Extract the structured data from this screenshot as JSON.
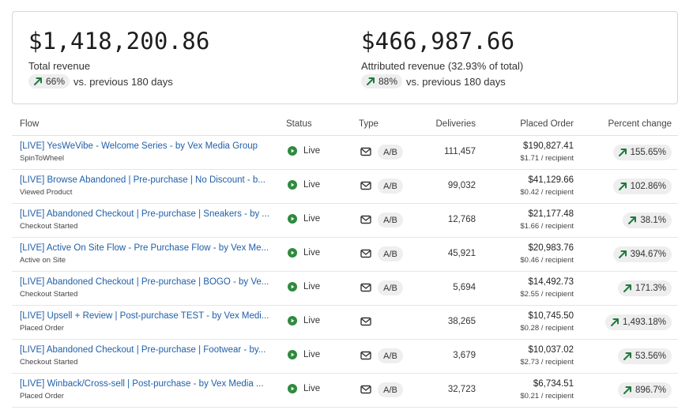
{
  "summary": {
    "total": {
      "value": "$1,418,200.86",
      "label": "Total revenue",
      "change": "66%",
      "comparison": "vs. previous 180 days"
    },
    "attributed": {
      "value": "$466,987.66",
      "label": "Attributed revenue (32.93% of total)",
      "change": "88%",
      "comparison": "vs. previous 180 days"
    }
  },
  "table": {
    "headers": {
      "flow": "Flow",
      "status": "Status",
      "type": "Type",
      "deliveries": "Deliveries",
      "placed_order": "Placed Order",
      "percent_change": "Percent change"
    },
    "rows": [
      {
        "name": "[LIVE] YesWeVibe - Welcome Series - by Vex Media Group",
        "trigger": "SpinToWheel",
        "status": "Live",
        "ab": "A/B",
        "deliveries": "111,457",
        "placed_order": "$190,827.41",
        "per_recipient": "$1.71 / recipient",
        "percent_change": "155.65%"
      },
      {
        "name": "[LIVE] Browse Abandoned | Pre-purchase | No Discount - b...",
        "trigger": "Viewed Product",
        "status": "Live",
        "ab": "A/B",
        "deliveries": "99,032",
        "placed_order": "$41,129.66",
        "per_recipient": "$0.42 / recipient",
        "percent_change": "102.86%"
      },
      {
        "name": "[LIVE] Abandoned Checkout | Pre-purchase | Sneakers - by ...",
        "trigger": "Checkout Started",
        "status": "Live",
        "ab": "A/B",
        "deliveries": "12,768",
        "placed_order": "$21,177.48",
        "per_recipient": "$1.66 / recipient",
        "percent_change": "38.1%"
      },
      {
        "name": "[LIVE] Active On Site Flow - Pre Purchase Flow - by Vex Me...",
        "trigger": "Active on Site",
        "status": "Live",
        "ab": "A/B",
        "deliveries": "45,921",
        "placed_order": "$20,983.76",
        "per_recipient": "$0.46 / recipient",
        "percent_change": "394.67%"
      },
      {
        "name": "[LIVE] Abandoned Checkout | Pre-purchase | BOGO - by Ve...",
        "trigger": "Checkout Started",
        "status": "Live",
        "ab": "A/B",
        "deliveries": "5,694",
        "placed_order": "$14,492.73",
        "per_recipient": "$2.55 / recipient",
        "percent_change": "171.3%"
      },
      {
        "name": "[LIVE] Upsell + Review | Post-purchase TEST - by Vex Medi...",
        "trigger": "Placed Order",
        "status": "Live",
        "ab": "",
        "deliveries": "38,265",
        "placed_order": "$10,745.50",
        "per_recipient": "$0.28 / recipient",
        "percent_change": "1,493.18%"
      },
      {
        "name": "[LIVE] Abandoned Checkout | Pre-purchase | Footwear - by...",
        "trigger": "Checkout Started",
        "status": "Live",
        "ab": "A/B",
        "deliveries": "3,679",
        "placed_order": "$10,037.02",
        "per_recipient": "$2.73 / recipient",
        "percent_change": "53.56%"
      },
      {
        "name": "[LIVE] Winback/Cross-sell | Post-purchase - by Vex Media ...",
        "trigger": "Placed Order",
        "status": "Live",
        "ab": "A/B",
        "deliveries": "32,723",
        "placed_order": "$6,734.51",
        "per_recipient": "$0.21 / recipient",
        "percent_change": "896.7%"
      }
    ]
  },
  "icons": {
    "trend": "trend-up-arrow-icon",
    "status": "play-circle-icon",
    "type": "email-icon"
  },
  "colors": {
    "link": "#1f5fa8",
    "positive": "#1f7a3d",
    "live": "#2f8a3e",
    "pill_bg": "#eeeeee"
  }
}
